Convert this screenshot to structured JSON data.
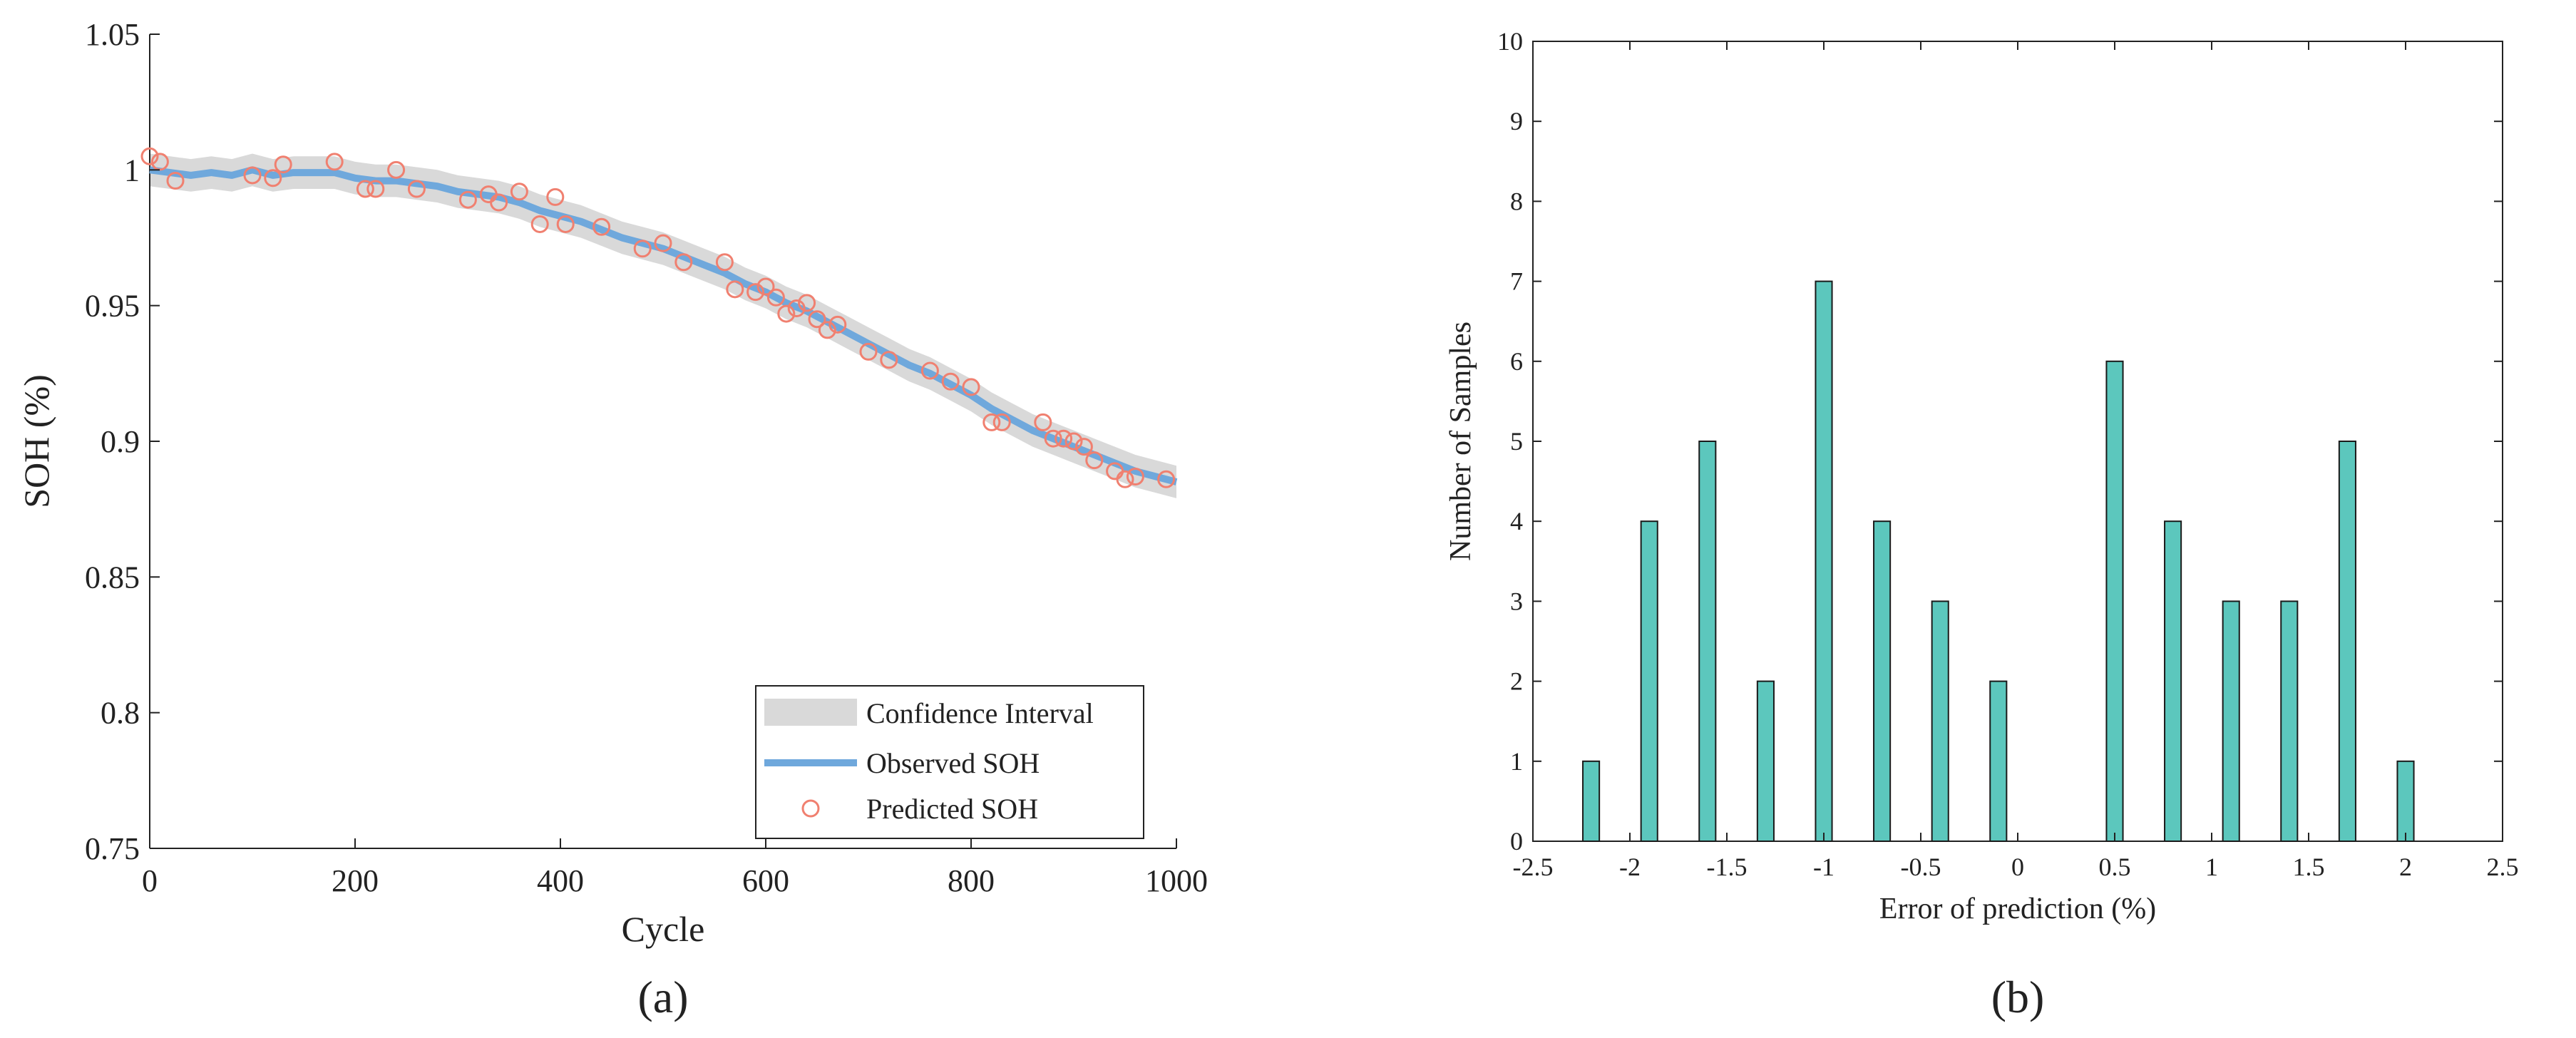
{
  "chart_data": [
    {
      "panel_label": "(a)",
      "type": "line",
      "xlabel": "Cycle",
      "ylabel": "SOH (%)",
      "xlim": [
        0,
        1000
      ],
      "ylim": [
        0.75,
        1.05
      ],
      "xticks": [
        0,
        200,
        400,
        600,
        800,
        1000
      ],
      "yticks": [
        0.75,
        0.8,
        0.85,
        0.9,
        0.95,
        1,
        1.05
      ],
      "xtick_labels": [
        "0",
        "200",
        "400",
        "600",
        "800",
        "1000"
      ],
      "ytick_labels": [
        "0.75",
        "0.8",
        "0.85",
        "0.9",
        "0.95",
        "1",
        "1.05"
      ],
      "legend": {
        "position": "bottom-right",
        "entries": [
          "Confidence Interval",
          "Observed SOH",
          "Predicted SOH"
        ]
      },
      "colors": {
        "confidence": "#d9d9d9",
        "observed": "#6fa8dc",
        "predicted": "#f08070"
      },
      "ci_halfwidth": 0.006,
      "observed": {
        "name": "Observed SOH",
        "x": [
          0,
          20,
          40,
          60,
          80,
          100,
          120,
          140,
          160,
          180,
          200,
          220,
          240,
          260,
          280,
          300,
          320,
          340,
          360,
          380,
          400,
          420,
          440,
          460,
          480,
          500,
          520,
          540,
          560,
          580,
          600,
          620,
          640,
          660,
          680,
          700,
          720,
          740,
          760,
          780,
          800,
          820,
          840,
          860,
          880,
          900,
          920,
          940,
          960,
          980,
          1000
        ],
        "y": [
          1.0,
          0.999,
          0.998,
          0.999,
          0.998,
          1.0,
          0.998,
          0.999,
          0.999,
          0.999,
          0.997,
          0.996,
          0.996,
          0.995,
          0.994,
          0.992,
          0.991,
          0.99,
          0.988,
          0.985,
          0.983,
          0.981,
          0.978,
          0.975,
          0.973,
          0.971,
          0.968,
          0.965,
          0.962,
          0.958,
          0.955,
          0.951,
          0.948,
          0.944,
          0.94,
          0.936,
          0.932,
          0.928,
          0.925,
          0.921,
          0.917,
          0.912,
          0.908,
          0.904,
          0.901,
          0.898,
          0.895,
          0.892,
          0.889,
          0.887,
          0.885
        ]
      },
      "predicted": {
        "name": "Predicted SOH",
        "x": [
          0,
          10,
          25,
          100,
          120,
          130,
          180,
          210,
          220,
          240,
          260,
          310,
          330,
          340,
          360,
          380,
          395,
          405,
          440,
          480,
          500,
          520,
          560,
          570,
          590,
          600,
          610,
          620,
          630,
          640,
          650,
          660,
          670,
          700,
          720,
          760,
          780,
          800,
          820,
          830,
          870,
          880,
          890,
          900,
          910,
          920,
          940,
          950,
          960,
          990
        ],
        "y": [
          1.005,
          1.003,
          0.996,
          0.998,
          0.997,
          1.002,
          1.003,
          0.993,
          0.993,
          1.0,
          0.993,
          0.989,
          0.991,
          0.988,
          0.992,
          0.98,
          0.99,
          0.98,
          0.979,
          0.971,
          0.973,
          0.966,
          0.966,
          0.956,
          0.955,
          0.957,
          0.953,
          0.947,
          0.949,
          0.951,
          0.945,
          0.941,
          0.943,
          0.933,
          0.93,
          0.926,
          0.922,
          0.92,
          0.907,
          0.907,
          0.907,
          0.901,
          0.901,
          0.9,
          0.898,
          0.893,
          0.889,
          0.886,
          0.887,
          0.886
        ]
      }
    },
    {
      "panel_label": "(b)",
      "type": "bar",
      "xlabel": "Error of prediction (%)",
      "ylabel": "Number of Samples",
      "xlim": [
        -2.5,
        2.5
      ],
      "ylim": [
        0,
        10
      ],
      "xticks": [
        -2.5,
        -2,
        -1.5,
        -1,
        -0.5,
        0,
        0.5,
        1,
        1.5,
        2,
        2.5
      ],
      "yticks": [
        0,
        1,
        2,
        3,
        4,
        5,
        6,
        7,
        8,
        9,
        10
      ],
      "xtick_labels": [
        "-2.5",
        "-2",
        "-1.5",
        "-1",
        "-0.5",
        "0",
        "0.5",
        "1",
        "1.5",
        "2",
        "2.5"
      ],
      "ytick_labels": [
        "0",
        "1",
        "2",
        "3",
        "4",
        "5",
        "6",
        "7",
        "8",
        "9",
        "10"
      ],
      "colors": {
        "bar": "#5cc7bd",
        "edge": "#1a1a1a"
      },
      "bar_width": 0.085,
      "bins": [
        -2.2,
        -1.9,
        -1.6,
        -1.3,
        -1.0,
        -0.7,
        -0.4,
        -0.1,
        0.5,
        0.8,
        1.1,
        1.4,
        1.7,
        2.0
      ],
      "values": [
        1,
        4,
        5,
        2,
        7,
        4,
        3,
        2,
        6,
        4,
        3,
        3,
        5,
        1
      ]
    }
  ]
}
